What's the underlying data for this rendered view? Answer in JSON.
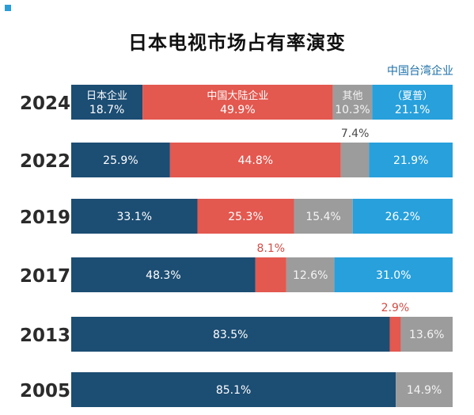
{
  "title": "日本电视市场占有率演变",
  "colors": {
    "japan": "#1c4d73",
    "mainland": "#e3584f",
    "other": "#9c9c9c",
    "taiwan": "#27a0dc",
    "label_light": "#ffffff",
    "label_dark": "#4a4a4a",
    "label_red": "#d54c45"
  },
  "chart_data": {
    "type": "bar",
    "stacked": true,
    "orientation": "horizontal",
    "unit": "%",
    "categories": [
      "2024",
      "2022",
      "2019",
      "2017",
      "2013",
      "2005"
    ],
    "series": [
      {
        "name": "日本企业",
        "color_key": "japan",
        "values": [
          18.7,
          25.9,
          33.1,
          48.3,
          83.5,
          85.1
        ],
        "labels": [
          "18.7%",
          "25.9%",
          "33.1%",
          "48.3%",
          "83.5%",
          "85.1%"
        ]
      },
      {
        "name": "中国大陆企业",
        "color_key": "mainland",
        "values": [
          49.9,
          44.8,
          25.3,
          8.1,
          2.9,
          0
        ],
        "labels": [
          "49.9%",
          "44.8%",
          "25.3%",
          "8.1%",
          "2.9%",
          ""
        ]
      },
      {
        "name": "其他",
        "color_key": "other",
        "values": [
          10.3,
          7.4,
          15.4,
          12.6,
          13.6,
          14.9
        ],
        "labels": [
          "10.3%",
          "7.4%",
          "15.4%",
          "12.6%",
          "13.6%",
          "14.9%"
        ]
      },
      {
        "name": "中国台湾企业",
        "color_key": "taiwan",
        "values": [
          21.1,
          21.9,
          26.2,
          31.0,
          0,
          0
        ],
        "labels": [
          "21.1%",
          "21.9%",
          "26.2%",
          "31.0%",
          "",
          ""
        ]
      }
    ],
    "inline_names_row": "2024",
    "inline_names": [
      "日本企业",
      "中国大陆企业",
      "其他",
      "（夏普）"
    ],
    "top_note": "中国台湾企业",
    "outside_labels": [
      {
        "row": "2022",
        "series": 2,
        "label": "7.4%"
      },
      {
        "row": "2017",
        "series": 1,
        "label": "8.1%"
      },
      {
        "row": "2013",
        "series": 1,
        "label": "2.9%"
      }
    ]
  }
}
